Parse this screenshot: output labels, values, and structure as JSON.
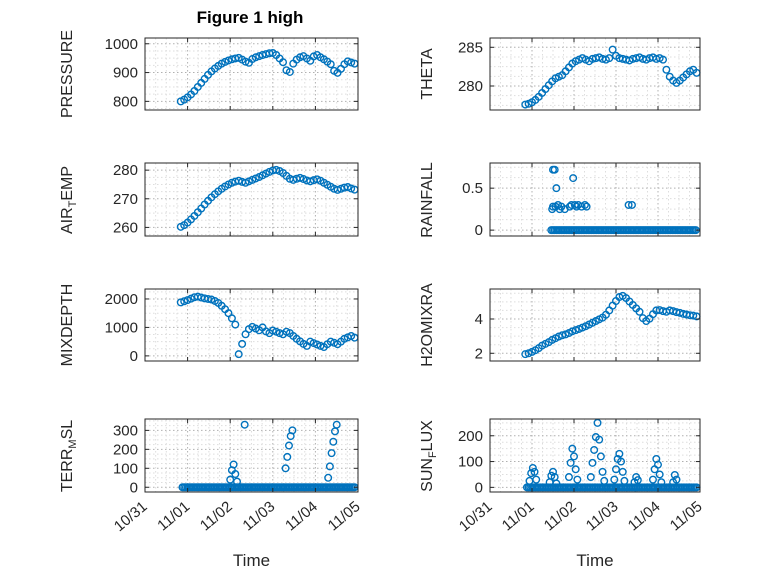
{
  "title": "Figure 1 high",
  "xlabel": "Time",
  "marker_color": "#0072BD",
  "axis_color": "#262626",
  "grid": {
    "style": "dotted",
    "major_color": "#b0b0b0",
    "minor_color": "#dddddd"
  },
  "x_axis": {
    "lim": [
      0,
      5
    ],
    "ticks": [
      0,
      1,
      2,
      3,
      4,
      5
    ],
    "labels": [
      "10/31",
      "11/01",
      "11/02",
      "11/03",
      "11/04",
      "11/05"
    ]
  },
  "sample_x": [
    0.84,
    0.92,
    1,
    1.08,
    1.16,
    1.24,
    1.32,
    1.4,
    1.48,
    1.56,
    1.64,
    1.72,
    1.8,
    1.88,
    1.96,
    2.04,
    2.12,
    2.2,
    2.28,
    2.36,
    2.44,
    2.52,
    2.6,
    2.68,
    2.76,
    2.84,
    2.92,
    3,
    3.08,
    3.16,
    3.24,
    3.32,
    3.4,
    3.48,
    3.56,
    3.64,
    3.72,
    3.8,
    3.88,
    3.96,
    4.04,
    4.12,
    4.2,
    4.28,
    4.36,
    4.44,
    4.52,
    4.6,
    4.68,
    4.76,
    4.84,
    4.92
  ],
  "chart_data": [
    {
      "type": "scatter",
      "id": "pressure",
      "ylabel": "PRESSURE",
      "ylabel_parts": [
        {
          "t": "PRESSURE"
        }
      ],
      "ylim": [
        770,
        1020
      ],
      "yticks": [
        800,
        900,
        1000
      ],
      "x": "shared",
      "y": [
        800,
        806,
        814,
        824,
        836,
        850,
        864,
        878,
        892,
        904,
        914,
        923,
        931,
        937,
        942,
        946,
        949,
        951,
        945,
        938,
        934,
        947,
        953,
        957,
        961,
        964,
        967,
        968,
        961,
        949,
        936,
        908,
        902,
        931,
        945,
        953,
        957,
        949,
        941,
        956,
        961,
        953,
        946,
        938,
        929,
        906,
        899,
        913,
        929,
        939,
        935,
        931
      ]
    },
    {
      "type": "scatter",
      "id": "theta",
      "ylabel": "THETA",
      "ylabel_parts": [
        {
          "t": "THETA"
        }
      ],
      "ylim": [
        276.9,
        286.2
      ],
      "yticks": [
        280,
        285
      ],
      "x": "shared",
      "y": [
        277.6,
        277.7,
        277.9,
        278.2,
        278.6,
        279.1,
        279.6,
        280.1,
        280.6,
        281.0,
        281.2,
        281.4,
        281.9,
        282.4,
        282.9,
        283.2,
        283.4,
        283.6,
        283.4,
        283.2,
        283.5,
        283.6,
        283.7,
        283.5,
        283.4,
        283.6,
        284.7,
        283.9,
        283.6,
        283.5,
        283.4,
        283.3,
        283.5,
        283.6,
        283.7,
        283.5,
        283.4,
        283.6,
        283.7,
        283.5,
        283.6,
        283.4,
        282.1,
        281.2,
        280.7,
        280.4,
        280.7,
        281.1,
        281.5,
        281.9,
        282.1,
        281.7
      ]
    },
    {
      "type": "scatter",
      "id": "air-temp",
      "ylabel": "AIR_TEMP",
      "ylabel_parts": [
        {
          "t": "AIR"
        },
        {
          "t": "T",
          "sub": true
        },
        {
          "t": "EMP"
        }
      ],
      "ylim": [
        257,
        282.5
      ],
      "yticks": [
        260,
        270,
        280
      ],
      "x": "shared",
      "y": [
        260.2,
        260.8,
        261.7,
        262.8,
        264.0,
        265.3,
        266.6,
        268.0,
        269.3,
        270.5,
        271.6,
        272.6,
        273.5,
        274.3,
        275.0,
        275.6,
        276.0,
        276.3,
        275.9,
        275.6,
        276.1,
        276.6,
        277.1,
        277.6,
        278.2,
        278.8,
        279.4,
        279.9,
        280.1,
        279.7,
        279.0,
        278.0,
        277.0,
        276.6,
        277.0,
        277.3,
        276.9,
        276.4,
        276.1,
        276.5,
        276.8,
        276.3,
        275.6,
        274.9,
        274.2,
        273.5,
        273.1,
        273.5,
        273.9,
        274.1,
        273.6,
        273.2
      ]
    },
    {
      "type": "scatter",
      "id": "rainfall",
      "ylabel": "RAINFALL",
      "ylabel_parts": [
        {
          "t": "RAINFALL"
        }
      ],
      "ylim": [
        -0.07,
        0.8
      ],
      "yticks": [
        0,
        0.5
      ],
      "points": [
        [
          1.48,
          0.25
        ],
        [
          1.5,
          0.72
        ],
        [
          1.54,
          0.72
        ],
        [
          1.58,
          0.5
        ],
        [
          1.5,
          0.28
        ],
        [
          1.56,
          0.28
        ],
        [
          1.62,
          0.3
        ],
        [
          1.66,
          0.25
        ],
        [
          1.7,
          0.28
        ],
        [
          1.78,
          0.25
        ],
        [
          1.9,
          0.28
        ],
        [
          1.94,
          0.3
        ],
        [
          1.98,
          0.62
        ],
        [
          2.02,
          0.3
        ],
        [
          2.06,
          0.28
        ],
        [
          2.1,
          0.3
        ],
        [
          2.18,
          0.28
        ],
        [
          2.26,
          0.3
        ],
        [
          2.3,
          0.28
        ],
        [
          3.3,
          0.3
        ],
        [
          3.38,
          0.3
        ]
      ],
      "zero_run": {
        "from": 1.46,
        "to": 4.92,
        "step": 0.04,
        "y": 0
      }
    },
    {
      "type": "scatter",
      "id": "mixdepth",
      "ylabel": "MIXDEPTH",
      "ylabel_parts": [
        {
          "t": "MIXDEPTH"
        }
      ],
      "ylim": [
        -180,
        2350
      ],
      "yticks": [
        0,
        1000,
        2000
      ],
      "x": "shared",
      "y": [
        1880,
        1920,
        1960,
        2010,
        2060,
        2080,
        2050,
        2020,
        2000,
        1980,
        1930,
        1860,
        1760,
        1640,
        1500,
        1320,
        1100,
        60,
        420,
        760,
        940,
        1020,
        960,
        900,
        1000,
        860,
        800,
        890,
        850,
        800,
        760,
        850,
        800,
        700,
        600,
        510,
        420,
        350,
        500,
        450,
        400,
        350,
        310,
        410,
        500,
        460,
        410,
        500,
        600,
        650,
        700,
        640
      ]
    },
    {
      "type": "scatter",
      "id": "h2omixra",
      "ylabel": "H2OMIXRA",
      "ylabel_parts": [
        {
          "t": "H2OMIXRA"
        }
      ],
      "ylim": [
        1.55,
        5.75
      ],
      "yticks": [
        2,
        4
      ],
      "x": "shared",
      "y": [
        1.95,
        2.0,
        2.08,
        2.18,
        2.3,
        2.45,
        2.55,
        2.65,
        2.78,
        2.88,
        2.98,
        3.05,
        3.1,
        3.18,
        3.28,
        3.35,
        3.42,
        3.5,
        3.58,
        3.68,
        3.78,
        3.88,
        3.98,
        4.08,
        4.25,
        4.5,
        4.78,
        5.05,
        5.28,
        5.35,
        5.22,
        5.02,
        4.82,
        4.62,
        4.42,
        4.05,
        3.88,
        4.02,
        4.28,
        4.5,
        4.52,
        4.46,
        4.42,
        4.5,
        4.46,
        4.4,
        4.36,
        4.3,
        4.26,
        4.22,
        4.2,
        4.15
      ]
    },
    {
      "type": "scatter",
      "id": "terr-msl",
      "ylabel": "TERR_MSL",
      "ylabel_parts": [
        {
          "t": "TERR"
        },
        {
          "t": "M",
          "sub": true
        },
        {
          "t": "SL"
        }
      ],
      "ylim": [
        -25,
        360
      ],
      "yticks": [
        0,
        100,
        200,
        300
      ],
      "points": [
        [
          2.0,
          40
        ],
        [
          2.04,
          90
        ],
        [
          2.08,
          120
        ],
        [
          2.12,
          70
        ],
        [
          2.16,
          30
        ],
        [
          2.34,
          330
        ],
        [
          3.3,
          100
        ],
        [
          3.34,
          160
        ],
        [
          3.38,
          220
        ],
        [
          3.42,
          270
        ],
        [
          3.46,
          300
        ],
        [
          4.3,
          50
        ],
        [
          4.34,
          110
        ],
        [
          4.38,
          180
        ],
        [
          4.42,
          240
        ],
        [
          4.46,
          295
        ],
        [
          4.5,
          330
        ]
      ],
      "zero_run": {
        "from": 0.88,
        "to": 4.92,
        "step": 0.04,
        "y": 0
      }
    },
    {
      "type": "scatter",
      "id": "sun-flux",
      "ylabel": "SUN_FLUX",
      "ylabel_parts": [
        {
          "t": "SUN"
        },
        {
          "t": "F",
          "sub": true
        },
        {
          "t": "LUX"
        }
      ],
      "ylim": [
        -18,
        265
      ],
      "yticks": [
        0,
        100,
        200
      ],
      "points": [
        [
          0.94,
          25
        ],
        [
          0.98,
          55
        ],
        [
          1.02,
          75
        ],
        [
          1.06,
          60
        ],
        [
          1.1,
          30
        ],
        [
          1.42,
          20
        ],
        [
          1.46,
          45
        ],
        [
          1.5,
          60
        ],
        [
          1.54,
          40
        ],
        [
          1.58,
          15
        ],
        [
          1.88,
          40
        ],
        [
          1.92,
          95
        ],
        [
          1.96,
          150
        ],
        [
          2.0,
          120
        ],
        [
          2.04,
          70
        ],
        [
          2.08,
          30
        ],
        [
          2.4,
          40
        ],
        [
          2.44,
          95
        ],
        [
          2.48,
          145
        ],
        [
          2.52,
          195
        ],
        [
          2.56,
          250
        ],
        [
          2.6,
          185
        ],
        [
          2.64,
          120
        ],
        [
          2.68,
          60
        ],
        [
          2.72,
          25
        ],
        [
          2.96,
          30
        ],
        [
          3.0,
          70
        ],
        [
          3.04,
          110
        ],
        [
          3.08,
          130
        ],
        [
          3.12,
          100
        ],
        [
          3.16,
          60
        ],
        [
          3.2,
          25
        ],
        [
          3.44,
          20
        ],
        [
          3.48,
          40
        ],
        [
          3.52,
          28
        ],
        [
          3.88,
          30
        ],
        [
          3.92,
          70
        ],
        [
          3.96,
          110
        ],
        [
          4.0,
          88
        ],
        [
          4.04,
          50
        ],
        [
          4.08,
          20
        ],
        [
          4.36,
          20
        ],
        [
          4.4,
          48
        ],
        [
          4.44,
          30
        ]
      ],
      "zero_run": {
        "from": 0.88,
        "to": 4.92,
        "step": 0.04,
        "y": 0
      }
    }
  ]
}
